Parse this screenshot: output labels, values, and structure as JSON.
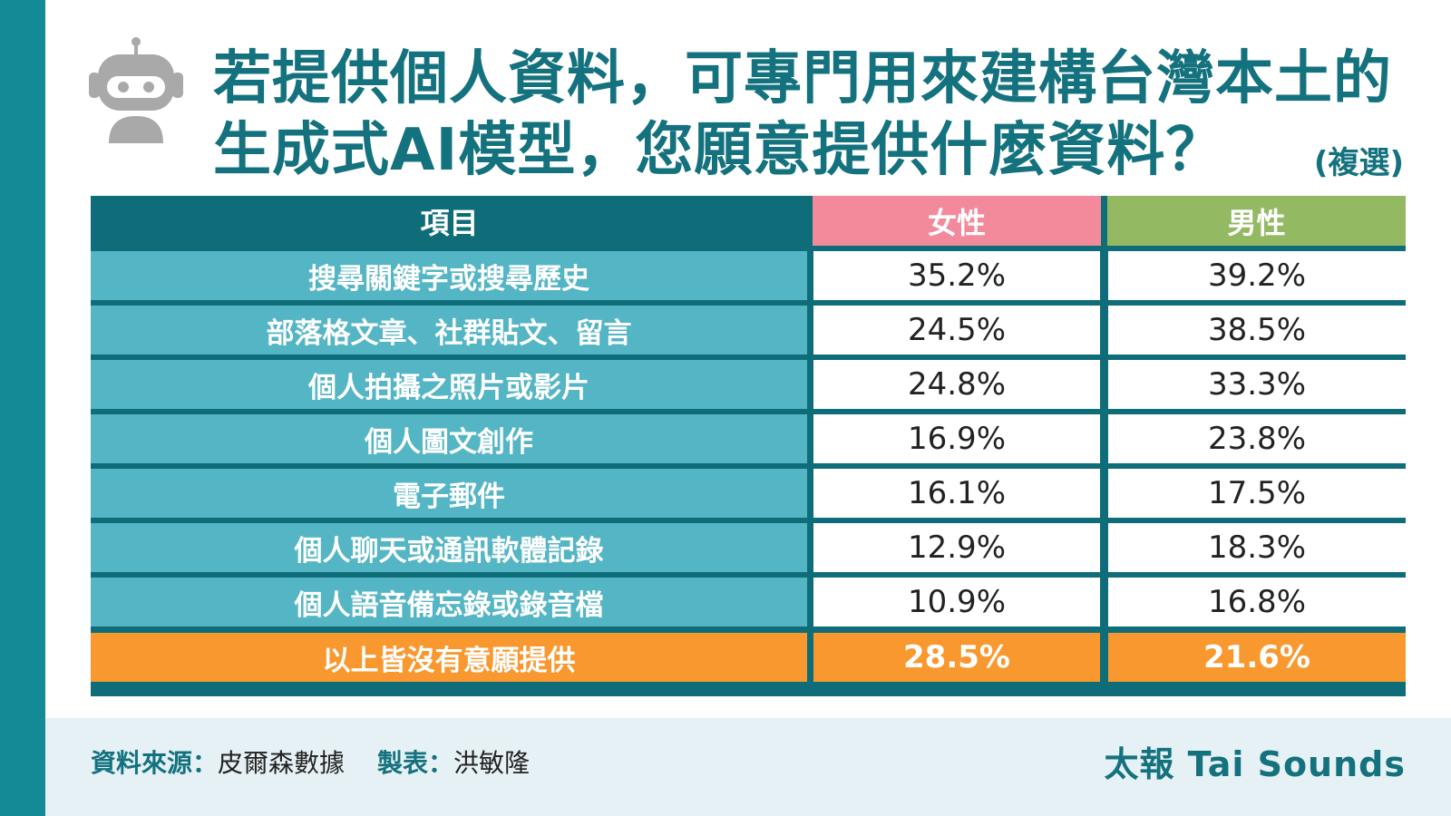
{
  "title": {
    "line1": "若提供個人資料，可專門用來建構台灣本土的",
    "line2": "生成式AI模型，您願意提供什麼資料？",
    "note": "(複選)"
  },
  "colors": {
    "sidebar": "#138a96",
    "title": "#14727e",
    "header_item": "#0e6d78",
    "header_female": "#f28a9b",
    "header_male": "#93ba63",
    "row_label": "#54b5c4",
    "total_row": "#f8982e",
    "footer": "#e6f1f5"
  },
  "icons": {
    "logo": "robot-icon"
  },
  "chart_data": {
    "type": "table",
    "columns": [
      "項目",
      "女性",
      "男性"
    ],
    "rows": [
      {
        "item": "搜尋關鍵字或搜尋歷史",
        "female": "35.2%",
        "male": "39.2%"
      },
      {
        "item": "部落格文章、社群貼文、留言",
        "female": "24.5%",
        "male": "38.5%"
      },
      {
        "item": "個人拍攝之照片或影片",
        "female": "24.8%",
        "male": "33.3%"
      },
      {
        "item": "個人圖文創作",
        "female": "16.9%",
        "male": "23.8%"
      },
      {
        "item": "電子郵件",
        "female": "16.1%",
        "male": "17.5%"
      },
      {
        "item": "個人聊天或通訊軟體記錄",
        "female": "12.9%",
        "male": "18.3%"
      },
      {
        "item": "個人語音備忘錄或錄音檔",
        "female": "10.9%",
        "male": "16.8%"
      }
    ],
    "total_row": {
      "item": "以上皆沒有意願提供",
      "female": "28.5%",
      "male": "21.6%"
    }
  },
  "footer": {
    "source_label": "資料來源：",
    "source_value": "皮爾森數據",
    "maker_label": "製表：",
    "maker_value": "洪敏隆",
    "brand": "太報 Tai Sounds"
  }
}
